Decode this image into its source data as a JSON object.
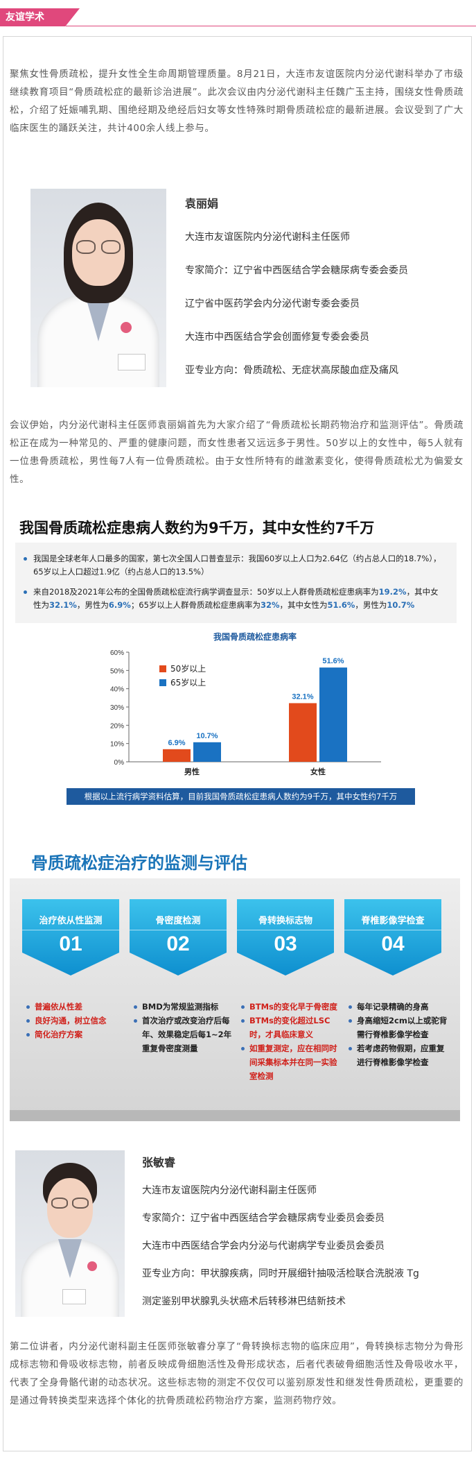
{
  "header": {
    "tag": "友谊学术"
  },
  "intro": "聚焦女性骨质疏松，提升女性全生命周期管理质量。8月21日，大连市友谊医院内分泌代谢科举办了市级继续教育项目“骨质疏松症的最新诊治进展”。此次会议由内分泌代谢科主任魏广玉主持，围绕女性骨质疏松，介绍了妊娠哺乳期、围绝经期及绝经后妇女等女性特殊时期骨质疏松症的最新进展。会议受到了广大临床医生的踊跃关注，共计400余人线上参与。",
  "expert1": {
    "name": "袁丽娟",
    "lines": [
      "大连市友谊医院内分泌代谢科主任医师",
      "专家简介：辽宁省中西医结合学会糖尿病专委会委员",
      "辽宁省中医药学会内分泌代谢专委会委员",
      "大连市中西医结合学会创面修复专委会委员",
      "亚专业方向：骨质疏松、无症状高尿酸血症及痛风"
    ]
  },
  "para2": "会议伊始，内分泌代谢科主任医师袁丽娟首先为大家介绍了“骨质疏松长期药物治疗和监测评估”。骨质疏松正在成为一种常见的、严重的健康问题，而女性患者又远远多于男性。50岁以上的女性中，每5人就有一位患骨质疏松，男性每7人有一位骨质疏松。由于女性所特有的雌激素变化，使得骨质疏松尤为偏爱女性。",
  "slide1": {
    "title": "我国骨质疏松症患病人数约为9千万，其中女性约7千万",
    "bullet1": "我国是全球老年人口最多的国家，第七次全国人口普查显示：我国60岁以上人口为2.64亿（约占总人口的18.7%），65岁以上人口超过1.9亿（约占总人口的13.5%）",
    "bullet2_a": "来自2018及2021年公布的全国骨质疏松症流行病学调查显示：50岁以上人群骨质疏松症患病率为",
    "bullet2_b": "19.2%",
    "bullet2_c": "，其中女性为",
    "bullet2_d": "32.1%",
    "bullet2_e": "，男性为",
    "bullet2_f": "6.9%",
    "bullet2_g": "；65岁以上人群骨质疏松症患病率为",
    "bullet2_h": "32%",
    "bullet2_i": "，其中女性为",
    "bullet2_j": "51.6%",
    "bullet2_k": "，男性为",
    "bullet2_l": "10.7%",
    "caption": "根据以上流行病学资料估算，目前我国骨质疏松症患病人数约为9千万，其中女性约7千万"
  },
  "chart_data": {
    "type": "bar",
    "title": "我国骨质疏松症患病率",
    "categories": [
      "男性",
      "女性"
    ],
    "series": [
      {
        "name": "50岁以上",
        "values": [
          6.9,
          32.1
        ],
        "color": "#e24a1c"
      },
      {
        "name": "65岁以上",
        "values": [
          10.7,
          51.6
        ],
        "color": "#1a72c2"
      }
    ],
    "ylim": [
      0,
      60
    ],
    "yticks": [
      "0%",
      "10%",
      "20%",
      "30%",
      "40%",
      "50%",
      "60%"
    ],
    "value_labels": [
      "6.9%",
      "10.7%",
      "32.1%",
      "51.6%"
    ],
    "legend": "top-left",
    "grid": false
  },
  "slide2": {
    "title": "骨质疏松症治疗的监测与评估",
    "cards": [
      {
        "label": "治疗依从性监测",
        "num": "01",
        "items": [
          "普遍依从性差",
          "良好沟通，树立信念",
          "简化治疗方案"
        ]
      },
      {
        "label": "骨密度检测",
        "num": "02",
        "items": [
          "BMD为常规监测指标",
          "首次治疗或改变治疗后每年、效果稳定后每1~2年重复骨密度测量"
        ]
      },
      {
        "label": "骨转换标志物",
        "num": "03",
        "items": [
          "BTMs的变化早于骨密度",
          "BTMs的变化超过LSC时，才具临床意义",
          "如重复测定，应在相同时间采集标本并在同一实验室检测"
        ]
      },
      {
        "label": "脊椎影像学检查",
        "num": "04",
        "items": [
          "每年记录精确的身高",
          "身高缩短2cm以上或驼背需行脊椎影像学检查",
          "若考虑药物假期，应重复进行脊椎影像学检查"
        ]
      }
    ]
  },
  "expert2": {
    "name": "张敏睿",
    "lines": [
      "大连市友谊医院内分泌代谢科副主任医师",
      "专家简介：辽宁省中西医结合学会糖尿病专业委员会委员",
      "大连市中西医结合学会内分泌与代谢病学专业委员会委员",
      "亚专业方向：甲状腺疾病，同时开展细针抽吸活检联合洗脱液 Tg",
      "测定鉴别甲状腺乳头状癌术后转移淋巴结新技术"
    ]
  },
  "para3": "第二位讲者，内分泌代谢科副主任医师张敏睿分享了“骨转换标志物的临床应用”，骨转换标志物分为骨形成标志物和骨吸收标志物，前者反映成骨细胞活性及骨形成状态，后者代表破骨细胞活性及骨吸收水平，代表了全身骨骼代谢的动态状况。这些标志物的测定不仅仅可以鉴别原发性和继发性骨质疏松，更重要的是通过骨转换类型来选择个体化的抗骨质疏松药物治疗方案，监测药物疗效。"
}
